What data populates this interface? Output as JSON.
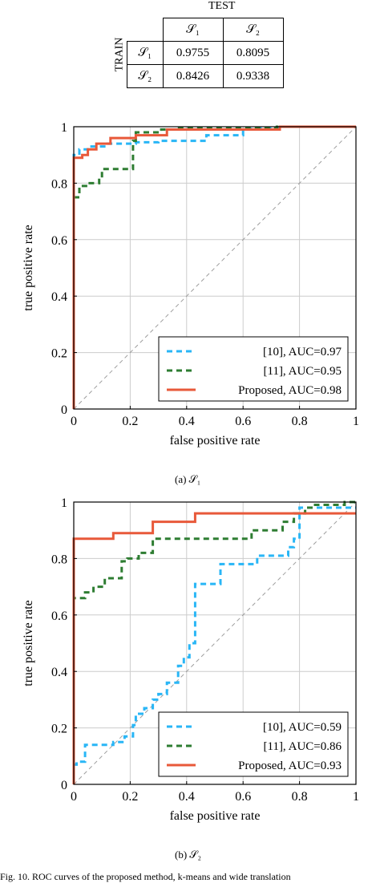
{
  "table": {
    "header": "TEST",
    "side_label": "TRAIN",
    "columns": [
      "𝒮₁",
      "𝒮₂"
    ],
    "rows": [
      {
        "label": "𝒮₁",
        "values": [
          "0.9755",
          "0.8095"
        ]
      },
      {
        "label": "𝒮₂",
        "values": [
          "0.8426",
          "0.9338"
        ]
      }
    ]
  },
  "chart_data": [
    {
      "type": "line",
      "xlabel": "false positive rate",
      "ylabel": "true positive rate",
      "xlim": [
        0,
        1
      ],
      "ylim": [
        0,
        1
      ],
      "xticks": [
        "0",
        "0.2",
        "0.4",
        "0.6",
        "0.8",
        "1"
      ],
      "yticks": [
        "0",
        "0.2",
        "0.4",
        "0.6",
        "0.8",
        "1"
      ],
      "grid": true,
      "legend_position": "bottom-right",
      "caption": "(a) 𝒮₁",
      "series": [
        {
          "name": "[10], AUC=0.97",
          "color": "#29b6f6",
          "dash": "dashed",
          "x": [
            0,
            0,
            0.02,
            0.02,
            0.05,
            0.05,
            0.12,
            0.12,
            0.22,
            0.22,
            0.3,
            0.3,
            0.47,
            0.47,
            0.6,
            0.6,
            0.75,
            1
          ],
          "y": [
            0,
            0.9,
            0.9,
            0.92,
            0.92,
            0.93,
            0.93,
            0.94,
            0.94,
            0.945,
            0.945,
            0.95,
            0.95,
            0.97,
            0.97,
            0.99,
            1,
            1
          ]
        },
        {
          "name": "[11], AUC=0.95",
          "color": "#2e7d32",
          "dash": "dashed",
          "x": [
            0,
            0,
            0.02,
            0.02,
            0.05,
            0.05,
            0.09,
            0.09,
            0.1,
            0.1,
            0.21,
            0.21,
            0.22,
            0.22,
            0.31,
            0.31,
            0.36,
            0.36,
            0.72,
            0.72,
            1
          ],
          "y": [
            0,
            0.75,
            0.75,
            0.79,
            0.79,
            0.8,
            0.8,
            0.82,
            0.82,
            0.85,
            0.85,
            0.95,
            0.95,
            0.98,
            0.98,
            0.99,
            0.99,
            0.995,
            0.995,
            1,
            1
          ]
        },
        {
          "name": "Proposed, AUC=0.98",
          "color": "#e8593a",
          "dash": "solid",
          "x": [
            0,
            0,
            0.03,
            0.03,
            0.05,
            0.05,
            0.08,
            0.08,
            0.13,
            0.13,
            0.22,
            0.22,
            0.33,
            0.33,
            0.73,
            0.73,
            1
          ],
          "y": [
            0,
            0.89,
            0.89,
            0.9,
            0.9,
            0.92,
            0.92,
            0.94,
            0.94,
            0.96,
            0.96,
            0.97,
            0.97,
            0.99,
            0.99,
            1,
            1
          ]
        }
      ]
    },
    {
      "type": "line",
      "xlabel": "false positive rate",
      "ylabel": "true positive rate",
      "xlim": [
        0,
        1
      ],
      "ylim": [
        0,
        1
      ],
      "xticks": [
        "0",
        "0.2",
        "0.4",
        "0.6",
        "0.8",
        "1"
      ],
      "yticks": [
        "0",
        "0.2",
        "0.4",
        "0.6",
        "0.8",
        "1"
      ],
      "grid": true,
      "legend_position": "bottom-right",
      "caption": "(b) 𝒮₂",
      "series": [
        {
          "name": "[10], AUC=0.59",
          "color": "#29b6f6",
          "dash": "dashed",
          "x": [
            0,
            0,
            0.01,
            0.01,
            0.04,
            0.04,
            0.14,
            0.14,
            0.18,
            0.18,
            0.21,
            0.21,
            0.22,
            0.22,
            0.25,
            0.25,
            0.28,
            0.28,
            0.3,
            0.3,
            0.33,
            0.33,
            0.37,
            0.37,
            0.39,
            0.39,
            0.41,
            0.41,
            0.43,
            0.43,
            0.46,
            0.46,
            0.52,
            0.52,
            0.58,
            0.58,
            0.65,
            0.65,
            0.76,
            0.76,
            0.78,
            0.78,
            0.8,
            0.8,
            1
          ],
          "y": [
            0,
            0.07,
            0.07,
            0.08,
            0.08,
            0.14,
            0.14,
            0.15,
            0.15,
            0.17,
            0.17,
            0.21,
            0.21,
            0.25,
            0.25,
            0.27,
            0.27,
            0.3,
            0.3,
            0.32,
            0.32,
            0.36,
            0.36,
            0.42,
            0.42,
            0.45,
            0.45,
            0.5,
            0.5,
            0.71,
            0.71,
            0.71,
            0.71,
            0.78,
            0.78,
            0.78,
            0.78,
            0.81,
            0.81,
            0.84,
            0.84,
            0.87,
            0.87,
            0.98,
            0.98
          ]
        },
        {
          "name": "[11], AUC=0.86",
          "color": "#2e7d32",
          "dash": "dashed",
          "x": [
            0,
            0,
            0.04,
            0.04,
            0.07,
            0.07,
            0.11,
            0.11,
            0.17,
            0.17,
            0.19,
            0.19,
            0.23,
            0.23,
            0.28,
            0.28,
            0.63,
            0.63,
            0.74,
            0.74,
            0.78,
            0.78,
            0.82,
            0.82,
            0.85,
            0.85,
            0.96,
            0.96,
            1
          ],
          "y": [
            0,
            0.66,
            0.66,
            0.68,
            0.68,
            0.7,
            0.7,
            0.73,
            0.73,
            0.79,
            0.79,
            0.8,
            0.8,
            0.82,
            0.82,
            0.87,
            0.87,
            0.9,
            0.9,
            0.93,
            0.93,
            0.96,
            0.96,
            0.98,
            0.98,
            0.99,
            0.99,
            1,
            1
          ]
        },
        {
          "name": "Proposed, AUC=0.93",
          "color": "#e8593a",
          "dash": "solid",
          "x": [
            0,
            0,
            0.14,
            0.14,
            0.28,
            0.28,
            0.43,
            0.43,
            1
          ],
          "y": [
            0,
            0.87,
            0.87,
            0.89,
            0.89,
            0.93,
            0.93,
            0.96,
            0.96
          ]
        }
      ]
    }
  ],
  "colors": {
    "grid": "#cccccc",
    "diagonal": "#9e9e9e"
  },
  "footer": "Fig. 10.  ROC curves of the proposed method, k-means and wide translation"
}
